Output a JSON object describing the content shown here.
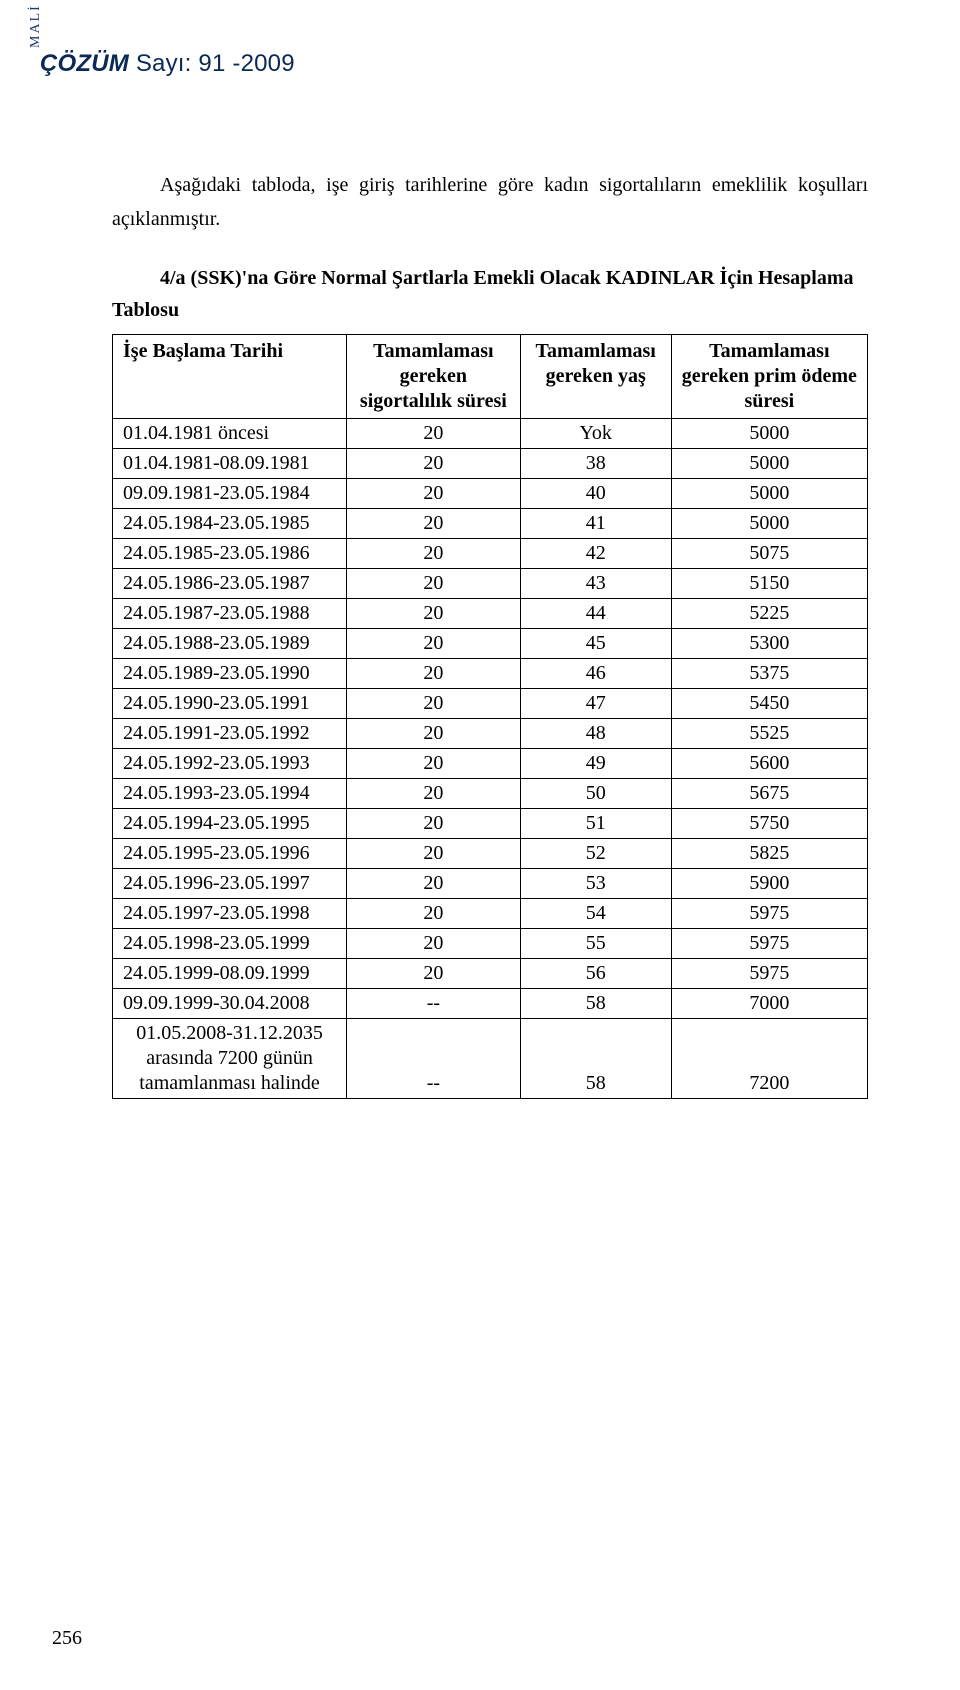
{
  "header": {
    "mali_vertical": "MALİ",
    "title_bold": "ÇÖZÜM",
    "title_rest": " Sayı: 91 -2009"
  },
  "intro": "Aşağıdaki tabloda, işe giriş tarihlerine göre kadın sigortalıların emeklilik koşulları açıklanmıştır.",
  "table": {
    "title": "4/a (SSK)'na Göre Normal Şartlarla Emekli Olacak KADINLAR İçin Hesaplama Tablosu",
    "columns": [
      "İşe Başlama Tarihi",
      "Tamamlaması gereken sigortalılık süresi",
      "Tamamlaması gereken yaş",
      "Tamamlaması gereken prim ödeme süresi"
    ],
    "rows": [
      [
        "01.04.1981 öncesi",
        "20",
        "Yok",
        "5000"
      ],
      [
        "01.04.1981-08.09.1981",
        "20",
        "38",
        "5000"
      ],
      [
        "09.09.1981-23.05.1984",
        "20",
        "40",
        "5000"
      ],
      [
        "24.05.1984-23.05.1985",
        "20",
        "41",
        "5000"
      ],
      [
        "24.05.1985-23.05.1986",
        "20",
        "42",
        "5075"
      ],
      [
        "24.05.1986-23.05.1987",
        "20",
        "43",
        "5150"
      ],
      [
        "24.05.1987-23.05.1988",
        "20",
        "44",
        "5225"
      ],
      [
        "24.05.1988-23.05.1989",
        "20",
        "45",
        "5300"
      ],
      [
        "24.05.1989-23.05.1990",
        "20",
        "46",
        "5375"
      ],
      [
        "24.05.1990-23.05.1991",
        "20",
        "47",
        "5450"
      ],
      [
        "24.05.1991-23.05.1992",
        "20",
        "48",
        "5525"
      ],
      [
        "24.05.1992-23.05.1993",
        "20",
        "49",
        "5600"
      ],
      [
        "24.05.1993-23.05.1994",
        "20",
        "50",
        "5675"
      ],
      [
        "24.05.1994-23.05.1995",
        "20",
        "51",
        "5750"
      ],
      [
        "24.05.1995-23.05.1996",
        "20",
        "52",
        "5825"
      ],
      [
        "24.05.1996-23.05.1997",
        "20",
        "53",
        "5900"
      ],
      [
        "24.05.1997-23.05.1998",
        "20",
        "54",
        "5975"
      ],
      [
        "24.05.1998-23.05.1999",
        "20",
        "55",
        "5975"
      ],
      [
        "24.05.1999-08.09.1999",
        "20",
        "56",
        "5975"
      ],
      [
        "09.09.1999-30.04.2008",
        "--",
        "58",
        "7000"
      ]
    ],
    "last_row": {
      "start_lines": [
        "01.05.2008-31.12.2035",
        "arasında 7200 günün",
        "tamamlanması halinde"
      ],
      "sig": "--",
      "yas": "58",
      "prim": "7200"
    },
    "col_widths": [
      "31%",
      "23%",
      "20%",
      "26%"
    ]
  },
  "page_number": "256"
}
